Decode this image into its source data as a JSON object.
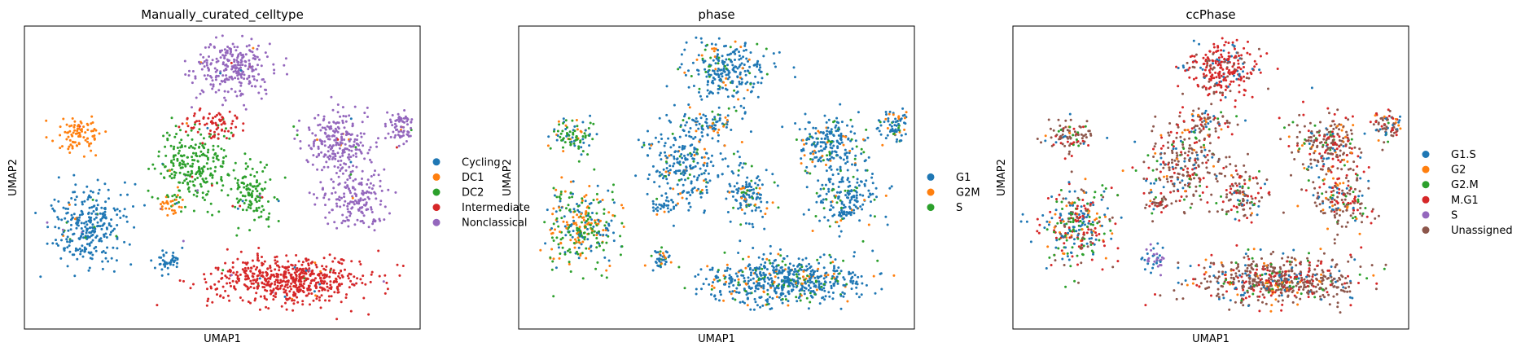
{
  "chart_data": [
    {
      "type": "scatter",
      "title": "Manually_curated_celltype",
      "xlabel": "UMAP1",
      "ylabel": "UMAP2",
      "grid": false,
      "legend_position": "right",
      "legend": [
        {
          "label": "Cycling",
          "color": "#1f77b4"
        },
        {
          "label": "DC1",
          "color": "#ff7f0e"
        },
        {
          "label": "DC2",
          "color": "#2ca02c"
        },
        {
          "label": "Intermediate",
          "color": "#d62728"
        },
        {
          "label": "Nonclassical",
          "color": "#9467bd"
        }
      ]
    },
    {
      "type": "scatter",
      "title": "phase",
      "xlabel": "UMAP1",
      "ylabel": "UMAP2",
      "grid": false,
      "legend_position": "right",
      "legend": [
        {
          "label": "G1",
          "color": "#1f77b4"
        },
        {
          "label": "G2M",
          "color": "#ff7f0e"
        },
        {
          "label": "S",
          "color": "#2ca02c"
        }
      ]
    },
    {
      "type": "scatter",
      "title": "ccPhase",
      "xlabel": "UMAP1",
      "ylabel": "UMAP2",
      "grid": false,
      "legend_position": "right",
      "legend": [
        {
          "label": "G1.S",
          "color": "#1f77b4"
        },
        {
          "label": "G2",
          "color": "#ff7f0e"
        },
        {
          "label": "G2.M",
          "color": "#2ca02c"
        },
        {
          "label": "M.G1",
          "color": "#d62728"
        },
        {
          "label": "S",
          "color": "#9467bd"
        },
        {
          "label": "Unassigned",
          "color": "#8c564b"
        }
      ]
    }
  ]
}
